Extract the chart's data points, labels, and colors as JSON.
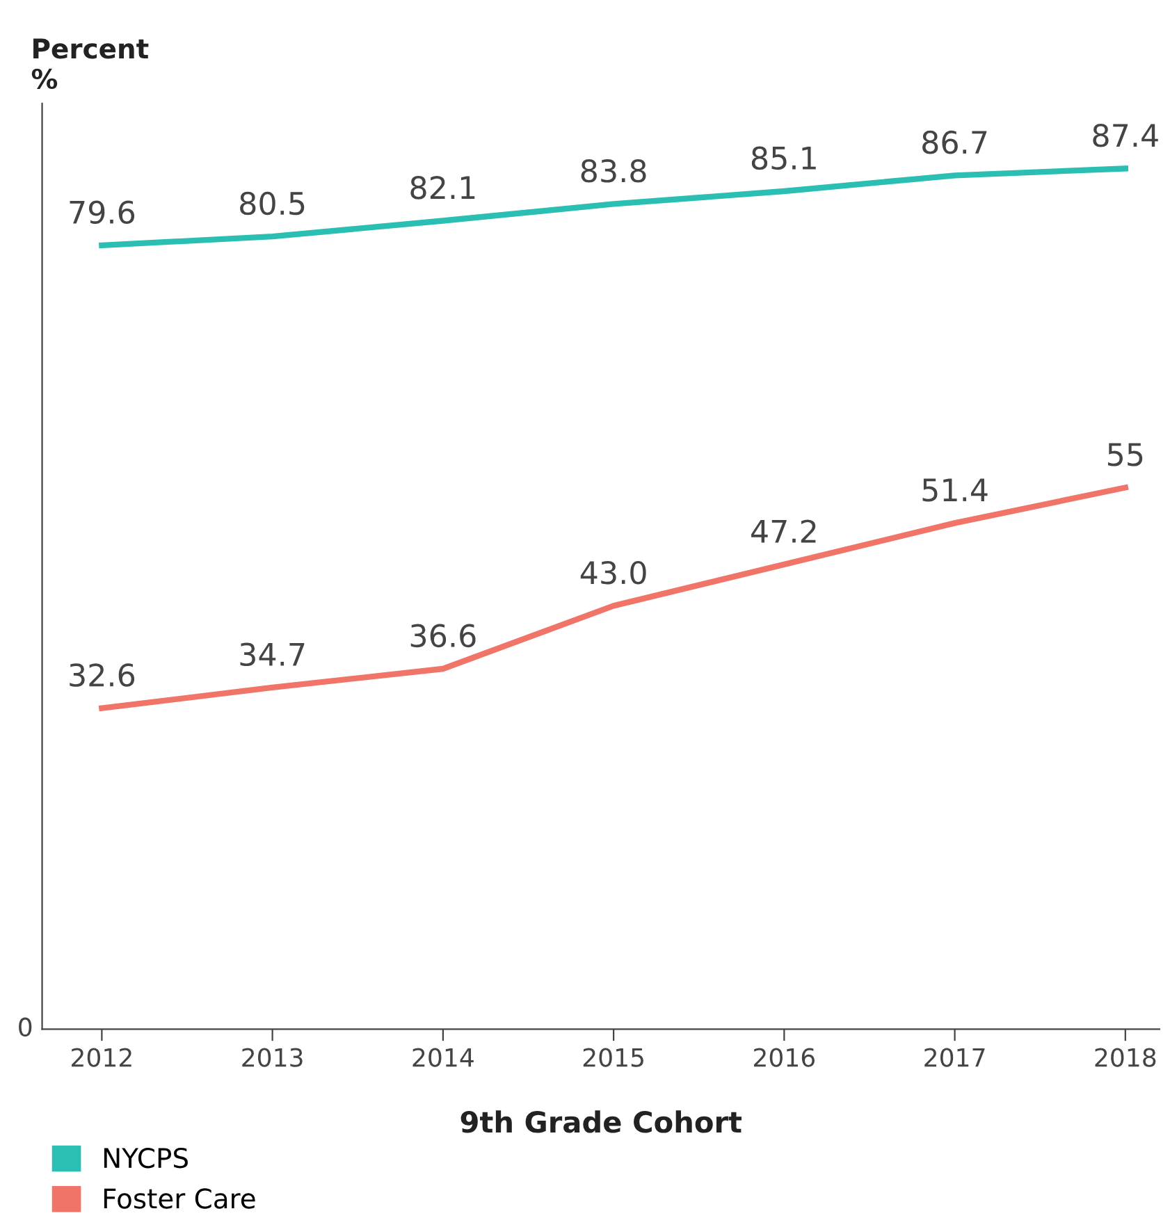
{
  "chart_data": {
    "type": "line",
    "ylabel": "Percent\n%",
    "xlabel": "9th Grade Cohort",
    "categories": [
      "2012",
      "2013",
      "2014",
      "2015",
      "2016",
      "2017",
      "2018"
    ],
    "series": [
      {
        "name": "NYCPS",
        "color": "#2bbfb4",
        "values": [
          79.6,
          80.5,
          82.1,
          83.8,
          85.1,
          86.7,
          87.4
        ],
        "value_labels": [
          "79.6",
          "80.5",
          "82.1",
          "83.8",
          "85.1",
          "86.7",
          "87.4"
        ]
      },
      {
        "name": "Foster Care",
        "color": "#f07468",
        "values": [
          32.6,
          34.7,
          36.6,
          43.0,
          47.2,
          51.4,
          55
        ],
        "value_labels": [
          "32.6",
          "34.7",
          "36.6",
          "43.0",
          "47.2",
          "51.4",
          "55"
        ]
      }
    ],
    "annotations": [
      "0"
    ],
    "ylim": [
      0,
      94
    ],
    "grid": false,
    "legend": "bottom left",
    "marker": "none",
    "line_style": "solid"
  }
}
